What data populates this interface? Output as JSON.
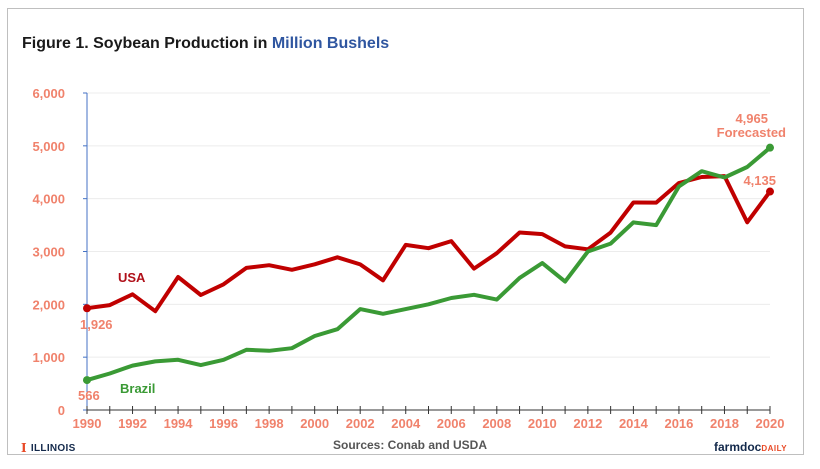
{
  "chart_data": {
    "type": "line",
    "title": "Figure 1. Soybean Production in",
    "title_highlight": "Million  Bushels",
    "xlabel": "",
    "ylabel": "",
    "ylim": [
      0,
      6000
    ],
    "xlim": [
      1990,
      2020
    ],
    "y_ticks": [
      0,
      1000,
      2000,
      3000,
      4000,
      5000,
      6000
    ],
    "y_tick_labels": [
      "0",
      "1,000",
      "2,000",
      "3,000",
      "4,000",
      "5,000",
      "6,000"
    ],
    "x_ticks": [
      1990,
      1991,
      1992,
      1993,
      1994,
      1995,
      1996,
      1997,
      1998,
      1999,
      2000,
      2001,
      2002,
      2003,
      2004,
      2005,
      2006,
      2007,
      2008,
      2009,
      2010,
      2011,
      2012,
      2013,
      2014,
      2015,
      2016,
      2017,
      2018,
      2019,
      2020
    ],
    "x_tick_labels": [
      "1990",
      "1992",
      "1994",
      "1996",
      "1998",
      "2000",
      "2002",
      "2004",
      "2006",
      "2008",
      "2010",
      "2012",
      "2014",
      "2016",
      "2018",
      "2020"
    ],
    "x_label_years": [
      1990,
      1992,
      1994,
      1996,
      1998,
      2000,
      2002,
      2004,
      2006,
      2008,
      2010,
      2012,
      2014,
      2016,
      2018,
      2020
    ],
    "grid": true,
    "x": [
      1990,
      1991,
      1992,
      1993,
      1994,
      1995,
      1996,
      1997,
      1998,
      1999,
      2000,
      2001,
      2002,
      2003,
      2004,
      2005,
      2006,
      2007,
      2008,
      2009,
      2010,
      2011,
      2012,
      2013,
      2014,
      2015,
      2016,
      2017,
      2018,
      2019,
      2020
    ],
    "series": [
      {
        "name": "USA",
        "color": "#c00000",
        "values": [
          1926,
          1986,
          2190,
          1870,
          2517,
          2177,
          2380,
          2689,
          2741,
          2654,
          2758,
          2891,
          2756,
          2454,
          3124,
          3063,
          3197,
          2677,
          2967,
          3359,
          3329,
          3097,
          3042,
          3357,
          3927,
          3926,
          4296,
          4411,
          4428,
          3552,
          4135
        ]
      },
      {
        "name": "Brazil",
        "color": "#3a9a35",
        "values": [
          566,
          690,
          840,
          920,
          950,
          850,
          950,
          1140,
          1120,
          1170,
          1400,
          1530,
          1910,
          1820,
          1910,
          2000,
          2120,
          2180,
          2090,
          2500,
          2780,
          2430,
          3000,
          3150,
          3550,
          3500,
          4230,
          4520,
          4400,
          4600,
          4965
        ]
      }
    ],
    "annotations": {
      "usa_start": "1,926",
      "brazil_start": "566",
      "usa_end": "4,135",
      "brazil_end": "4,965",
      "brazil_end_note": "Forecasted"
    },
    "source": "Sources: Conab and USDA"
  },
  "logos": {
    "left_mark": "I",
    "left_text": "ILLINOIS",
    "right_main": "farmdoc",
    "right_sub": "DAILY"
  }
}
